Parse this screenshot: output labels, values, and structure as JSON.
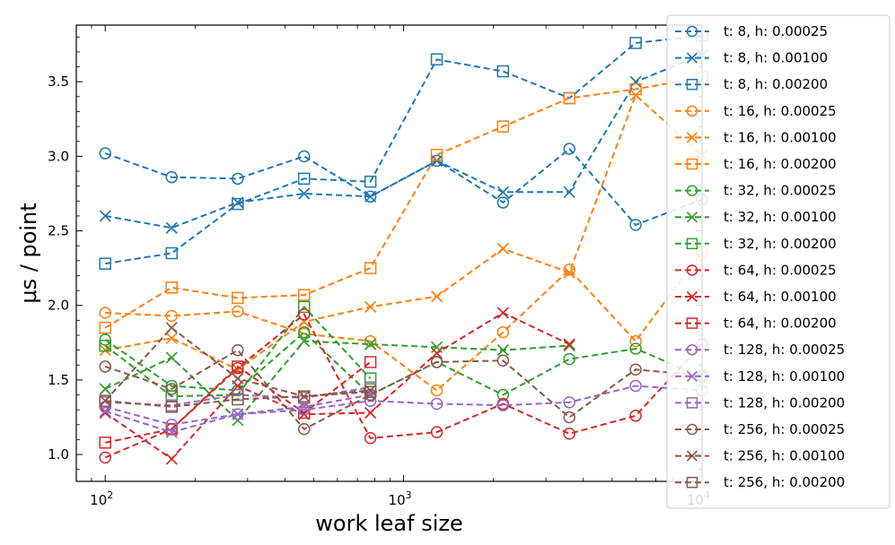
{
  "chart_data": {
    "type": "line",
    "xlabel": "work leaf size",
    "ylabel": "μs / point",
    "xscale": "log",
    "xlim": [
      80,
      10000
    ],
    "ylim": [
      0.82,
      3.88
    ],
    "x_ticks": [
      100,
      1000,
      10000
    ],
    "x_tick_labels": [
      [
        "10",
        "2"
      ],
      [
        "10",
        "3"
      ],
      [
        "10",
        "4"
      ]
    ],
    "y_ticks": [
      1.0,
      1.5,
      2.0,
      2.5,
      3.0,
      3.5
    ],
    "y_tick_labels": [
      "1.0",
      "1.5",
      "2.0",
      "2.5",
      "3.0",
      "3.5"
    ],
    "grid": false,
    "legend_position": "right",
    "line_style": "dashed",
    "series": [
      {
        "name": "t: 8, h: 0.00025",
        "color": "#1f77b4",
        "marker": "circle",
        "x": [
          100,
          167,
          278,
          464,
          774,
          1292,
          2154,
          3594,
          5995,
          10000
        ],
        "values": [
          3.02,
          2.86,
          2.85,
          3.0,
          2.73,
          2.97,
          2.69,
          3.05,
          2.54,
          2.71
        ]
      },
      {
        "name": "t: 8, h: 0.00100",
        "color": "#1f77b4",
        "marker": "x",
        "x": [
          100,
          167,
          278,
          464,
          774,
          1292,
          2154,
          3594,
          5995,
          10000
        ],
        "values": [
          2.6,
          2.52,
          2.69,
          2.75,
          2.73,
          2.97,
          2.76,
          2.76,
          3.5,
          3.68
        ]
      },
      {
        "name": "t: 8, h: 0.00200",
        "color": "#1f77b4",
        "marker": "square",
        "x": [
          100,
          167,
          278,
          464,
          774,
          1292,
          2154,
          3594,
          5995,
          10000
        ],
        "values": [
          2.28,
          2.35,
          2.68,
          2.85,
          2.83,
          3.65,
          3.57,
          3.39,
          3.76,
          3.81
        ]
      },
      {
        "name": "t: 16, h: 0.00025",
        "color": "#ff7f0e",
        "marker": "circle",
        "x": [
          100,
          167,
          278,
          464,
          774,
          1292,
          2154,
          3594,
          5995,
          10000
        ],
        "values": [
          1.95,
          1.93,
          1.96,
          1.81,
          1.76,
          1.43,
          1.82,
          2.24,
          1.76,
          2.36
        ]
      },
      {
        "name": "t: 16, h: 0.00100",
        "color": "#ff7f0e",
        "marker": "x",
        "x": [
          100,
          167,
          278,
          464,
          774,
          1292,
          2154,
          3594,
          5995,
          10000
        ],
        "values": [
          1.7,
          1.78,
          1.57,
          1.89,
          1.99,
          2.06,
          2.38,
          2.22,
          3.41,
          3.01
        ]
      },
      {
        "name": "t: 16, h: 0.00200",
        "color": "#ff7f0e",
        "marker": "square",
        "x": [
          100,
          167,
          278,
          464,
          774,
          1292,
          2154,
          3594,
          5995,
          10000
        ],
        "values": [
          1.85,
          2.12,
          2.05,
          2.07,
          2.25,
          3.01,
          3.2,
          3.39,
          3.45,
          3.53
        ]
      },
      {
        "name": "t: 32, h: 0.00025",
        "color": "#2ca02c",
        "marker": "circle",
        "x": [
          100,
          167,
          278,
          464,
          774,
          1292,
          2154,
          3594,
          5995,
          10000
        ],
        "values": [
          1.77,
          1.46,
          1.43,
          1.82,
          1.4,
          1.62,
          1.4,
          1.64,
          1.71,
          1.52
        ]
      },
      {
        "name": "t: 32, h: 0.00100",
        "color": "#2ca02c",
        "marker": "x",
        "x": [
          100,
          167,
          278,
          464,
          774,
          1292,
          2154,
          3594
        ],
        "values": [
          1.44,
          1.65,
          1.23,
          1.76,
          1.74,
          1.72,
          1.7,
          1.73
        ]
      },
      {
        "name": "t: 32, h: 0.00200",
        "color": "#2ca02c",
        "marker": "square",
        "x": [
          100,
          167,
          278,
          464,
          774
        ],
        "values": [
          1.73,
          1.39,
          1.4,
          1.99,
          1.51
        ]
      },
      {
        "name": "t: 64, h: 0.00025",
        "color": "#d62728",
        "marker": "circle",
        "x": [
          100,
          167,
          278,
          464,
          774,
          1292,
          2154,
          3594,
          5995,
          10000
        ],
        "values": [
          0.98,
          1.17,
          1.58,
          1.94,
          1.11,
          1.15,
          1.34,
          1.14,
          1.26,
          1.74
        ]
      },
      {
        "name": "t: 64, h: 0.00100",
        "color": "#d62728",
        "marker": "x",
        "x": [
          100,
          167,
          278,
          464,
          774,
          1292,
          2154,
          3594
        ],
        "values": [
          1.28,
          0.97,
          1.46,
          1.27,
          1.28,
          1.68,
          1.95,
          1.74
        ]
      },
      {
        "name": "t: 64, h: 0.00200",
        "color": "#d62728",
        "marker": "square",
        "x": [
          100,
          167,
          278,
          464,
          774
        ],
        "values": [
          1.08,
          1.17,
          1.59,
          1.28,
          1.62
        ]
      },
      {
        "name": "t: 128, h: 0.00025",
        "color": "#9467bd",
        "marker": "circle",
        "x": [
          100,
          167,
          278,
          464,
          774,
          1292,
          2154,
          3594,
          5995,
          10000
        ],
        "values": [
          1.32,
          1.2,
          1.27,
          1.3,
          1.36,
          1.34,
          1.33,
          1.35,
          1.46,
          1.43
        ]
      },
      {
        "name": "t: 128, h: 0.00100",
        "color": "#9467bd",
        "marker": "x",
        "x": [
          100,
          167,
          278,
          464,
          774
        ],
        "values": [
          1.29,
          1.15,
          1.27,
          1.32,
          1.4
        ]
      },
      {
        "name": "t: 128, h: 0.00200",
        "color": "#9467bd",
        "marker": "square",
        "x": [
          100,
          167,
          278,
          464,
          774
        ],
        "values": [
          1.35,
          1.33,
          1.4,
          1.38,
          1.45
        ]
      },
      {
        "name": "t: 256, h: 0.00025",
        "color": "#8c564b",
        "marker": "circle",
        "x": [
          100,
          167,
          278,
          464,
          774,
          1292,
          2154,
          3594,
          5995,
          10000
        ],
        "values": [
          1.59,
          1.44,
          1.7,
          1.17,
          1.4,
          1.62,
          1.63,
          1.25,
          1.57,
          1.53
        ]
      },
      {
        "name": "t: 256, h: 0.00100",
        "color": "#8c564b",
        "marker": "x",
        "x": [
          100,
          167,
          278,
          464,
          774
        ],
        "values": [
          1.36,
          1.85,
          1.51,
          1.39,
          1.43
        ]
      },
      {
        "name": "t: 256, h: 0.00200",
        "color": "#8c564b",
        "marker": "square",
        "x": [
          100,
          167,
          278,
          464,
          774
        ],
        "values": [
          1.36,
          1.32,
          1.37,
          1.39,
          1.42
        ]
      }
    ]
  }
}
